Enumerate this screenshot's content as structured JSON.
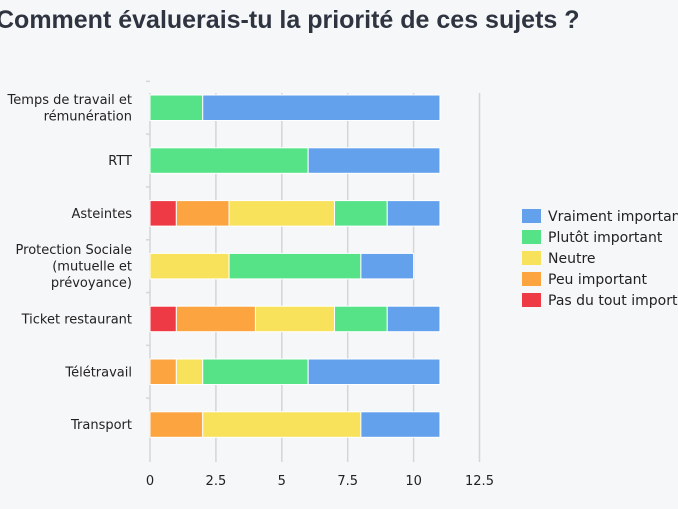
{
  "chart_data": {
    "type": "bar",
    "orientation": "horizontal",
    "stacked": true,
    "title": "Comment évaluerais-tu la priorité de ces sujets ?",
    "categories": [
      [
        "Temps de travail et",
        "rémunération"
      ],
      [
        "RTT"
      ],
      [
        "Asteintes"
      ],
      [
        "Protection Sociale",
        "(mutuelle et",
        "prévoyance)"
      ],
      [
        "Ticket restaurant"
      ],
      [
        "Télétravail"
      ],
      [
        "Transport"
      ]
    ],
    "series": [
      {
        "name": "Pas du tout important",
        "color": "#ee3a45",
        "values": [
          0,
          0,
          1,
          0,
          1,
          0,
          0
        ]
      },
      {
        "name": "Peu important",
        "color": "#fba440",
        "values": [
          0,
          0,
          2,
          0,
          3,
          1,
          2
        ]
      },
      {
        "name": "Neutre",
        "color": "#f8e15b",
        "values": [
          0,
          0,
          4,
          3,
          3,
          1,
          6
        ]
      },
      {
        "name": "Plutôt important",
        "color": "#56e388",
        "values": [
          2,
          6,
          2,
          5,
          2,
          4,
          0
        ]
      },
      {
        "name": "Vraiment important",
        "color": "#64a1ec",
        "values": [
          9,
          5,
          2,
          2,
          2,
          5,
          3
        ]
      }
    ],
    "xticks": [
      "0",
      "2.5",
      "5",
      "7.5",
      "10",
      "12.5"
    ],
    "xtick_values": [
      0,
      2.5,
      5,
      7.5,
      10,
      12.5
    ],
    "xlim": [
      0,
      12.5
    ],
    "grid": true,
    "legend_position": "right",
    "legend_order": [
      "Vraiment important",
      "Plutôt important",
      "Neutre",
      "Peu important",
      "Pas du tout important"
    ]
  }
}
